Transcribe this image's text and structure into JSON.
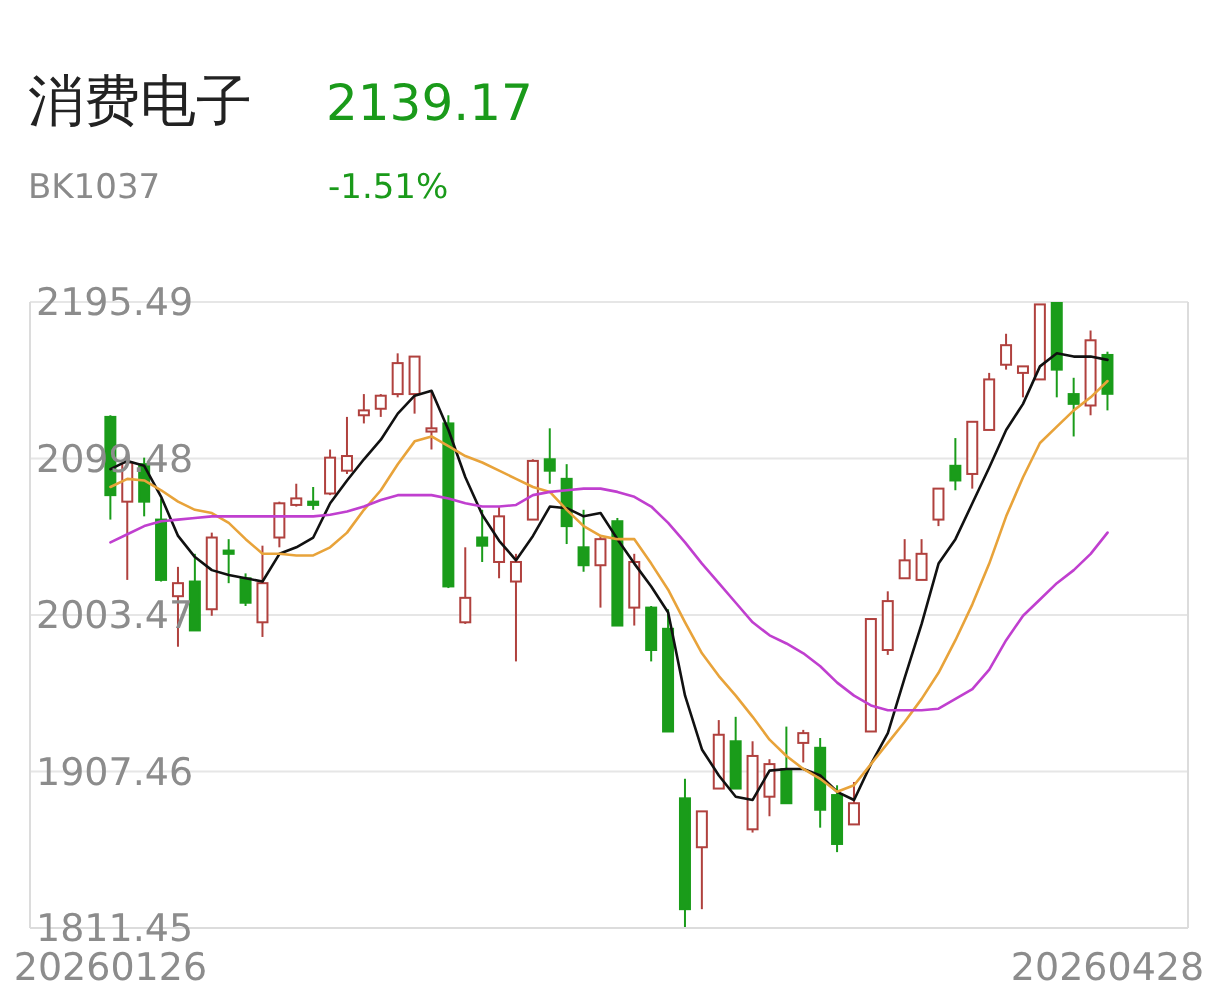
{
  "chart_data": {
    "type": "candlestick",
    "title": "消费电子",
    "subtitle": "BK1037",
    "annotations": [
      "2139.17",
      "-1.51%"
    ],
    "categories": [
      "20260126",
      null,
      null,
      null,
      null,
      null,
      null,
      null,
      null,
      null,
      null,
      null,
      null,
      null,
      null,
      null,
      null,
      null,
      null,
      null,
      null,
      null,
      null,
      null,
      null,
      null,
      null,
      null,
      null,
      null,
      null,
      null,
      null,
      null,
      null,
      null,
      null,
      null,
      null,
      null,
      null,
      null,
      null,
      null,
      null,
      null,
      null,
      null,
      null,
      null,
      null,
      null,
      null,
      null,
      null,
      null,
      null,
      null,
      null,
      "20260428"
    ],
    "ohlc": [
      [
        2125,
        2126,
        2062,
        2077
      ],
      [
        2073,
        2100,
        2025,
        2097
      ],
      [
        2096,
        2100,
        2064,
        2073
      ],
      [
        2062,
        2075,
        2024,
        2025
      ],
      [
        2015,
        2033,
        1984,
        2023
      ],
      [
        2024,
        2041,
        1994,
        1994
      ],
      [
        2007,
        2054,
        2003,
        2051
      ],
      [
        2043,
        2050,
        2023,
        2041
      ],
      [
        2026,
        2029,
        2009,
        2011
      ],
      [
        1999,
        2046,
        1990,
        2023
      ],
      [
        2051,
        2073,
        2045,
        2072
      ],
      [
        2071,
        2084,
        2070,
        2075
      ],
      [
        2073,
        2082,
        2068,
        2071
      ],
      [
        2078,
        2105,
        2077,
        2100
      ],
      [
        2092,
        2125,
        2090,
        2101
      ],
      [
        2126,
        2139,
        2121,
        2129
      ],
      [
        2130,
        2139,
        2125,
        2138
      ],
      [
        2139,
        2164,
        2137,
        2158
      ],
      [
        2139,
        2162,
        2127,
        2162
      ],
      [
        2116,
        2141,
        2105,
        2118
      ],
      [
        2121,
        2126,
        2020,
        2021
      ],
      [
        1999,
        2045,
        1998,
        2014
      ],
      [
        2051,
        2068,
        2036,
        2046
      ],
      [
        2036,
        2070,
        2026,
        2064
      ],
      [
        2024,
        2041,
        1975,
        2036
      ],
      [
        2062,
        2099,
        2062,
        2098
      ],
      [
        2099,
        2118,
        2084,
        2092
      ],
      [
        2087,
        2096,
        2047,
        2058
      ],
      [
        2045,
        2068,
        2030,
        2034
      ],
      [
        2034,
        2052,
        2008,
        2050
      ],
      [
        2061,
        2063,
        1997,
        1997
      ],
      [
        2008,
        2041,
        1997,
        2036
      ],
      [
        2008,
        2009,
        1975,
        1982
      ],
      [
        1995,
        2007,
        1932,
        1932
      ],
      [
        1891,
        1903,
        1811.45,
        1823
      ],
      [
        1861,
        1883,
        1823,
        1883
      ],
      [
        1897,
        1939,
        1897,
        1930
      ],
      [
        1926,
        1941,
        1897,
        1897
      ],
      [
        1872,
        1926,
        1870,
        1917
      ],
      [
        1892,
        1915,
        1880,
        1912
      ],
      [
        1909,
        1935,
        1888,
        1888
      ],
      [
        1925,
        1933,
        1913,
        1931
      ],
      [
        1922,
        1928,
        1873,
        1884
      ],
      [
        1893,
        1899,
        1858,
        1863
      ],
      [
        1875,
        1901,
        1875,
        1888
      ],
      [
        1932,
        2001,
        1932,
        2001
      ],
      [
        1982,
        2018,
        1979,
        2012
      ],
      [
        2026,
        2050,
        2026,
        2037
      ],
      [
        2025,
        2050,
        2025,
        2041
      ],
      [
        2062,
        2081,
        2058,
        2081
      ],
      [
        2095,
        2112,
        2080,
        2086
      ],
      [
        2090,
        2122,
        2081,
        2122
      ],
      [
        2117,
        2152,
        2117,
        2148
      ],
      [
        2157,
        2176,
        2154,
        2169
      ],
      [
        2152,
        2156,
        2137,
        2156
      ],
      [
        2148,
        2194,
        2148,
        2194
      ],
      [
        2195,
        2195.49,
        2137,
        2154
      ],
      [
        2139,
        2149,
        2113,
        2133
      ],
      [
        2132,
        2178,
        2126,
        2172
      ],
      [
        2163,
        2165,
        2129,
        2139.17
      ]
    ],
    "colors": [
      "#1a9c1a",
      "#b0413e",
      "#1a9c1a",
      "#1a9c1a",
      "#b0413e",
      "#1a9c1a",
      "#b0413e",
      "#1a9c1a",
      "#1a9c1a",
      "#b0413e",
      "#b0413e",
      "#b0413e",
      "#1a9c1a",
      "#b0413e",
      "#b0413e",
      "#b0413e",
      "#b0413e",
      "#b0413e",
      "#b0413e",
      "#b0413e",
      "#1a9c1a",
      "#b0413e",
      "#1a9c1a",
      "#b0413e",
      "#b0413e",
      "#b0413e",
      "#1a9c1a",
      "#1a9c1a",
      "#1a9c1a",
      "#b0413e",
      "#1a9c1a",
      "#b0413e",
      "#1a9c1a",
      "#1a9c1a",
      "#1a9c1a",
      "#b0413e",
      "#b0413e",
      "#1a9c1a",
      "#b0413e",
      "#b0413e",
      "#1a9c1a",
      "#b0413e",
      "#1a9c1a",
      "#1a9c1a",
      "#b0413e",
      "#b0413e",
      "#b0413e",
      "#b0413e",
      "#b0413e",
      "#b0413e",
      "#1a9c1a",
      "#b0413e",
      "#b0413e",
      "#b0413e",
      "#b0413e",
      "#b0413e",
      "#1a9c1a",
      "#1a9c1a",
      "#b0413e",
      "#1a9c1a"
    ],
    "series": [
      {
        "type": "line",
        "color": "#111111",
        "values": [
          2093,
          2098,
          2095,
          2076,
          2052,
          2039,
          2031,
          2028,
          2026,
          2024,
          2041,
          2045,
          2051,
          2072,
          2086,
          2099,
          2111,
          2127,
          2138,
          2141,
          2117,
          2088,
          2065,
          2049,
          2037,
          2052,
          2070,
          2069,
          2064,
          2066,
          2050,
          2035,
          2021,
          2005,
          1954,
          1921,
          1905,
          1892,
          1890,
          1908,
          1909,
          1909,
          1905,
          1895,
          1890,
          1912,
          1931,
          1965,
          1998,
          2035,
          2050,
          2072,
          2094,
          2117,
          2133,
          2156,
          2164,
          2162,
          2162,
          2160
        ]
      },
      {
        "type": "line",
        "color": "#e8a33a",
        "values": [
          2082,
          2087,
          2086,
          2080,
          2073,
          2068,
          2066,
          2060,
          2050,
          2041,
          2041,
          2040,
          2040,
          2045,
          2054,
          2068,
          2080,
          2096,
          2110,
          2113,
          2107,
          2101,
          2097,
          2092,
          2087,
          2082,
          2079,
          2068,
          2058,
          2052,
          2050,
          2050,
          2035,
          2019,
          1999,
          1980,
          1966,
          1954,
          1941,
          1927,
          1917,
          1909,
          1903,
          1895,
          1899,
          1912,
          1925,
          1938,
          1952,
          1968,
          1988,
          2010,
          2035,
          2064,
          2088,
          2109,
          2119,
          2129,
          2137,
          2147
        ]
      },
      {
        "type": "line",
        "color": "#c03fcf",
        "values": [
          2048,
          2053,
          2058,
          2061,
          2062,
          2063,
          2064,
          2064,
          2064,
          2064,
          2064,
          2064,
          2064,
          2065,
          2067,
          2070,
          2074,
          2077,
          2077,
          2077,
          2075,
          2072,
          2070,
          2070,
          2071,
          2077,
          2079,
          2080,
          2081,
          2081,
          2079,
          2076,
          2070,
          2060,
          2048,
          2035,
          2023,
          2011,
          1999,
          1991,
          1986,
          1980,
          1972,
          1962,
          1954,
          1948,
          1945,
          1945,
          1945,
          1946,
          1952,
          1958,
          1970,
          1988,
          2003,
          2013,
          2023,
          2031,
          2041,
          2054
        ]
      }
    ],
    "ylim": [
      1811.45,
      2195.49
    ],
    "yticks": [
      1811.45,
      1907.46,
      2003.47,
      2099.48,
      2195.49
    ],
    "grid": "y",
    "marker": "none"
  }
}
